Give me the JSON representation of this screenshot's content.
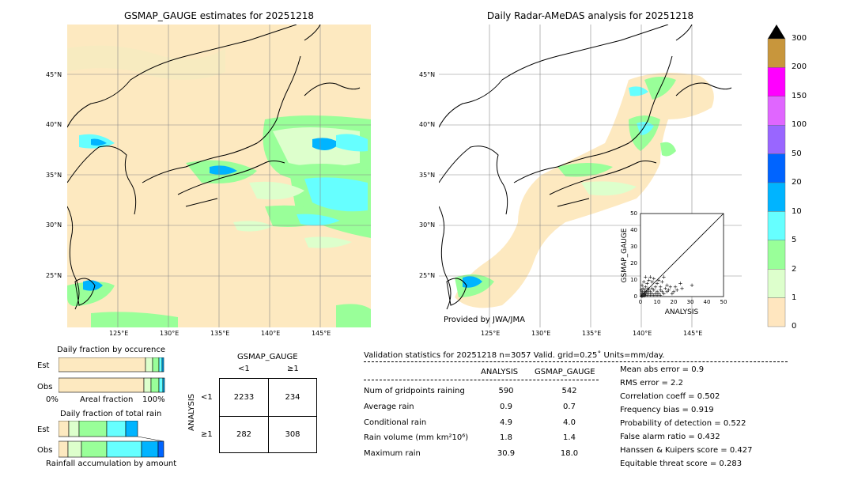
{
  "left_map": {
    "title": "GSMAP_GAUGE estimates for 20251218",
    "lat_labels": [
      "45°N",
      "40°N",
      "35°N",
      "30°N",
      "25°N"
    ],
    "lon_labels": [
      "125°E",
      "130°E",
      "135°E",
      "140°E",
      "145°E"
    ]
  },
  "right_map": {
    "title": "Daily Radar-AMeDAS analysis for 20251218",
    "lat_labels": [
      "45°N",
      "40°N",
      "35°N",
      "30°N",
      "25°N"
    ],
    "lon_labels": [
      "125°E",
      "130°E",
      "135°E",
      "140°E",
      "145°E"
    ],
    "credit": "Provided by JWA/JMA"
  },
  "colorbar": {
    "labels": [
      "300",
      "200",
      "150",
      "100",
      "50",
      "20",
      "10",
      "5",
      "2",
      "1",
      "0"
    ],
    "colors": [
      "#c8963c",
      "#ff00ff",
      "#e066ff",
      "#9966ff",
      "#0064ff",
      "#00b4ff",
      "#66ffff",
      "#99ff99",
      "#ddffcc",
      "#ffe6bf"
    ]
  },
  "scatter": {
    "xlabel": "ANALYSIS",
    "ylabel": "GSMAP_GAUGE",
    "ticks": [
      "0",
      "10",
      "20",
      "30",
      "40",
      "50"
    ]
  },
  "occurrence": {
    "title": "Daily fraction by occurence",
    "row_est": "Est",
    "row_obs": "Obs",
    "axis_left": "0%",
    "axis_mid": "Areal fraction",
    "axis_right": "100%"
  },
  "total_rain": {
    "title": "Daily fraction of total rain",
    "row_est": "Est",
    "row_obs": "Obs",
    "footer": "Rainfall accumulation by amount"
  },
  "contingency": {
    "col_title": "GSMAP_GAUGE",
    "col_lt": "<1",
    "col_ge": "≥1",
    "row_title": "ANALYSIS",
    "row_lt": "<1",
    "row_ge": "≥1",
    "cells": [
      "2233",
      "234",
      "282",
      "308"
    ]
  },
  "validation": {
    "header": "Validation statistics for 20251218  n=3057 Valid. grid=0.25˚ Units=mm/day.",
    "col_analysis": "ANALYSIS",
    "col_gsmap": "GSMAP_GAUGE",
    "rows": [
      {
        "label": "Num of gridpoints raining",
        "analysis": "590",
        "gsmap": "542"
      },
      {
        "label": "Average rain",
        "analysis": "0.9",
        "gsmap": "0.7"
      },
      {
        "label": "Conditional rain",
        "analysis": "4.9",
        "gsmap": "4.0"
      },
      {
        "label": "Rain volume (mm km²10⁶)",
        "analysis": "1.8",
        "gsmap": "1.4"
      },
      {
        "label": "Maximum rain",
        "analysis": "30.9",
        "gsmap": "18.0"
      }
    ],
    "scores": [
      "Mean abs error =    0.9",
      "RMS error =    2.2",
      "Correlation coeff =  0.502",
      "Frequency bias =  0.919",
      "Probability of detection =  0.522",
      "False alarm ratio =  0.432",
      "Hanssen & Kuipers score =  0.427",
      "Equitable threat score =  0.283"
    ]
  },
  "chart_data": {
    "type": "scatter",
    "xlabel": "ANALYSIS",
    "ylabel": "GSMAP_GAUGE",
    "xlim": [
      0,
      50
    ],
    "ylim": [
      0,
      50
    ],
    "points": [
      [
        0.5,
        0.5
      ],
      [
        1,
        0.3
      ],
      [
        1.5,
        1
      ],
      [
        2,
        0.5
      ],
      [
        2.5,
        1.5
      ],
      [
        3,
        1
      ],
      [
        0.8,
        2
      ],
      [
        1.2,
        3
      ],
      [
        2,
        2.5
      ],
      [
        3,
        2
      ],
      [
        4,
        1
      ],
      [
        4,
        3
      ],
      [
        5,
        2
      ],
      [
        5,
        4
      ],
      [
        6,
        1
      ],
      [
        6,
        3
      ],
      [
        7,
        2
      ],
      [
        7,
        5
      ],
      [
        8,
        1
      ],
      [
        8,
        4
      ],
      [
        9,
        2
      ],
      [
        9,
        6
      ],
      [
        10,
        3
      ],
      [
        10,
        1
      ],
      [
        11,
        2
      ],
      [
        12,
        4
      ],
      [
        12,
        1
      ],
      [
        13,
        3
      ],
      [
        14,
        2
      ],
      [
        15,
        5
      ],
      [
        16,
        7
      ],
      [
        17,
        4
      ],
      [
        18,
        6
      ],
      [
        20,
        3
      ],
      [
        22,
        4
      ],
      [
        24,
        8
      ],
      [
        25,
        5
      ],
      [
        31,
        7
      ],
      [
        3,
        6
      ],
      [
        4,
        8
      ],
      [
        2,
        9
      ],
      [
        1,
        7
      ],
      [
        5,
        10
      ],
      [
        6,
        12
      ],
      [
        7,
        9
      ],
      [
        8,
        11
      ],
      [
        3,
        12
      ],
      [
        10,
        8
      ],
      [
        13,
        9
      ],
      [
        14,
        12
      ],
      [
        12,
        6
      ],
      [
        11,
        10
      ],
      [
        16,
        3
      ],
      [
        19,
        2
      ],
      [
        21,
        6
      ],
      [
        0.5,
        4
      ],
      [
        1.5,
        5
      ],
      [
        2.5,
        4
      ],
      [
        3.5,
        3
      ],
      [
        4.5,
        5
      ]
    ],
    "diagonal": true
  }
}
